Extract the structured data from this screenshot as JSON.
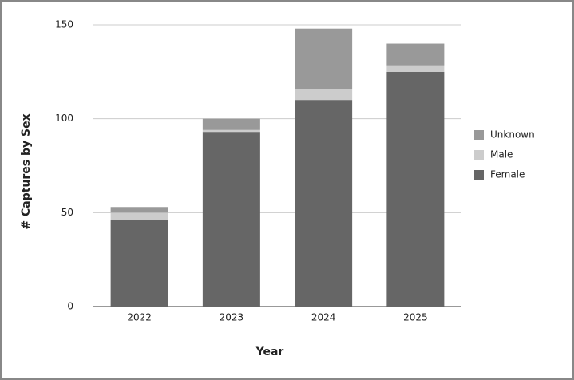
{
  "chart_data": {
    "type": "stacked_bar",
    "x_label": "Year",
    "y_label": "# Captures by Sex",
    "categories": [
      "2022",
      "2023",
      "2024",
      "2025"
    ],
    "series": [
      {
        "name": "Female",
        "color": "#666666",
        "values": [
          46,
          93,
          110,
          125
        ]
      },
      {
        "name": "Male",
        "color": "#cccccc",
        "values": [
          4,
          1,
          6,
          3
        ]
      },
      {
        "name": "Unknown",
        "color": "#999999",
        "values": [
          3,
          6,
          32,
          12
        ]
      }
    ],
    "ylim": [
      0,
      150
    ],
    "yticks": [
      0,
      50,
      100,
      150
    ],
    "grid": true,
    "legend": "right"
  }
}
